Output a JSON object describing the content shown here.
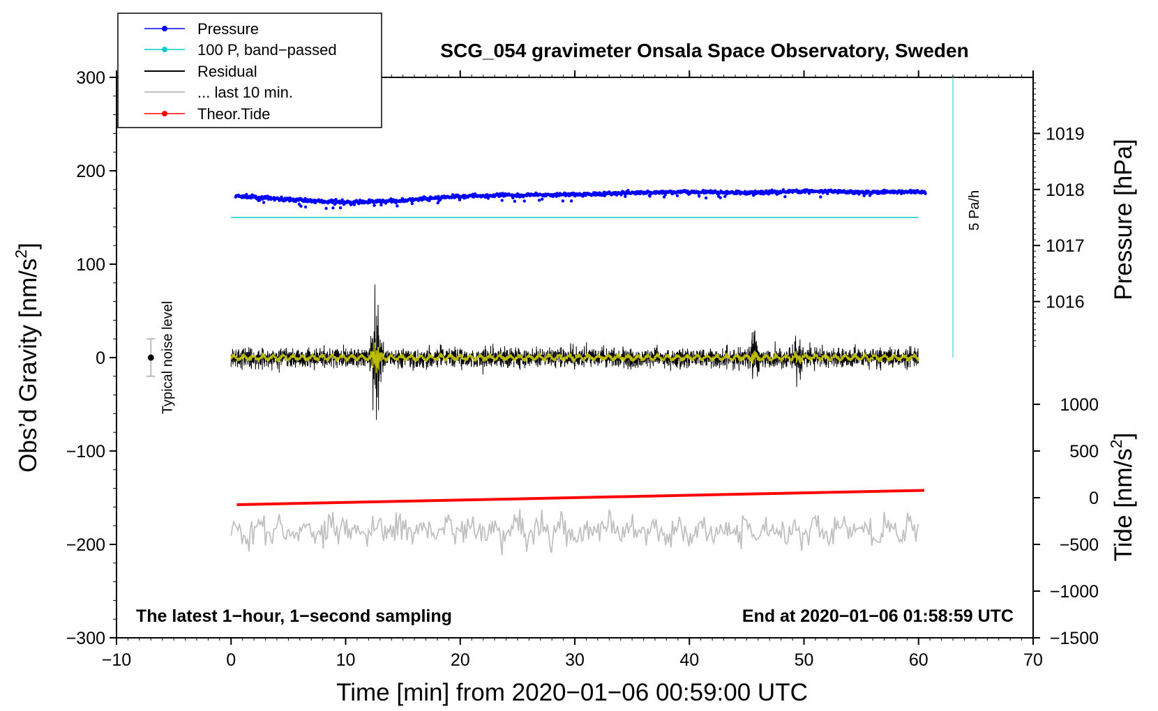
{
  "chart_data": {
    "type": "line",
    "title": "SCG_054 gravimeter Onsala Space Observatory, Sweden",
    "xlabel": "Time [min] from 2020−01−06 00:59:00 UTC",
    "ylabel_left": "Obs’d Gravity [nm/s",
    "ylabel_left_sup": "2",
    "ylabel_left_end": "]",
    "ylabel_right_pressure": "Pressure [hPa]",
    "ylabel_right_tide": "Tide [nm/s",
    "ylabel_right_tide_sup": "2",
    "ylabel_right_tide_end": "]",
    "xlim": [
      -10,
      70
    ],
    "ylim_left": [
      -300,
      300
    ],
    "x_ticks": [
      "−10",
      "0",
      "10",
      "20",
      "30",
      "40",
      "50",
      "60",
      "70"
    ],
    "x_tick_values": [
      -10,
      0,
      10,
      20,
      30,
      40,
      50,
      60,
      70
    ],
    "y_left_ticks": [
      "300",
      "200",
      "100",
      "0",
      "−100",
      "−200",
      "−300"
    ],
    "y_left_tick_values": [
      300,
      200,
      100,
      0,
      -100,
      -200,
      -300
    ],
    "pressure_ticks": [
      "1019",
      "1018",
      "1017",
      "1016"
    ],
    "pressure_tick_values": [
      1019,
      1018,
      1017,
      1016
    ],
    "pressure_axis_map": {
      "hpa_1018_at_gravity": 180,
      "gravity_per_hpa": 60
    },
    "tide_ticks": [
      "1000",
      "500",
      "0",
      "−500",
      "−1000",
      "−1500"
    ],
    "tide_tick_values": [
      1000,
      500,
      0,
      -500,
      -1000,
      -1500
    ],
    "tide_axis_map": {
      "tide_0_at_gravity": -150,
      "gravity_per_unit": 0.1
    },
    "series": [
      {
        "name": "Pressure",
        "color": "#0000ff",
        "unit": "hPa",
        "x": [
          0.5,
          5,
          10,
          15,
          20,
          25,
          30,
          35,
          40,
          45,
          50,
          55,
          60
        ],
        "values": [
          1017.88,
          1017.82,
          1017.77,
          1017.8,
          1017.88,
          1017.9,
          1017.91,
          1017.94,
          1017.96,
          1017.94,
          1017.97,
          1017.95,
          1017.96
        ]
      },
      {
        "name": "100 P, band−passed",
        "color": "#00cccc",
        "gravity_level": 150,
        "x_range": [
          0,
          60
        ]
      },
      {
        "name": "Residual",
        "color": "#000000",
        "x_range": [
          0,
          60
        ],
        "typical_amplitude": 20,
        "events": [
          {
            "x": 12.7,
            "amplitude": 110
          },
          {
            "x": 45.6,
            "amplitude": 60
          },
          {
            "x": 49.5,
            "amplitude": 45
          }
        ]
      },
      {
        "name": "... last 10 min.",
        "color": "#c0c0c0",
        "gravity_level": -185,
        "x_range": [
          0,
          60
        ]
      },
      {
        "name": "Theor.Tide",
        "color": "#ff0000",
        "unit": "nm/s2",
        "x": [
          0.5,
          60.5
        ],
        "values": [
          -75,
          78
        ]
      }
    ],
    "bandpass_overlay_color": "#cccc00",
    "noise_bar": {
      "label": "Typical noise level",
      "x": -7,
      "center": 0,
      "half_range": 20
    },
    "rate_bar": {
      "label": "5 Pa/h",
      "x": 63,
      "from": 0,
      "to": 300,
      "color": "#66dddd"
    },
    "note_left": "The latest 1−hour, 1−second sampling",
    "note_right": "End at 2020−01−06 01:58:59 UTC",
    "legend": [
      "Pressure",
      "100 P, band−passed",
      "Residual",
      "... last 10 min.",
      "Theor.Tide"
    ],
    "legend_location": "top-left"
  }
}
